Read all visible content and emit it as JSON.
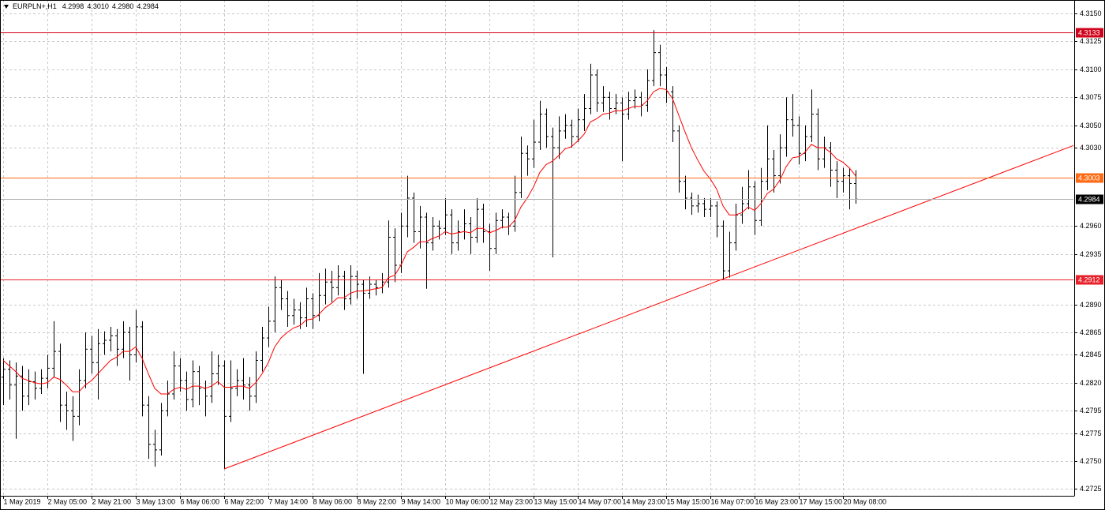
{
  "chart_data": {
    "type": "ohlc",
    "title": "EURPLN+,H1",
    "header_values": [
      "4.2998",
      "4.3010",
      "4.2980",
      "4.2984"
    ],
    "color": "#000000",
    "grid": true,
    "xlim": [
      -0.5,
      169.5
    ],
    "ylim": [
      4.2719,
      4.3162
    ],
    "xticks": [
      {
        "value": 0,
        "label": "1 May 2019"
      },
      {
        "value": 7,
        "label": "2 May 05:00"
      },
      {
        "value": 14,
        "label": "2 May 21:00"
      },
      {
        "value": 21,
        "label": "3 May 13:00"
      },
      {
        "value": 28,
        "label": "6 May 06:00"
      },
      {
        "value": 35,
        "label": "6 May 22:00"
      },
      {
        "value": 42,
        "label": "7 May 14:00"
      },
      {
        "value": 49,
        "label": "8 May 06:00"
      },
      {
        "value": 56,
        "label": "8 May 22:00"
      },
      {
        "value": 63,
        "label": "9 May 14:00"
      },
      {
        "value": 70,
        "label": "10 May 06:00"
      },
      {
        "value": 77,
        "label": "12 May 23:00"
      },
      {
        "value": 84,
        "label": "13 May 15:00"
      },
      {
        "value": 91,
        "label": "14 May 07:00"
      },
      {
        "value": 98,
        "label": "14 May 23:00"
      },
      {
        "value": 105,
        "label": "15 May 15:00"
      },
      {
        "value": 112,
        "label": "16 May 07:00"
      },
      {
        "value": 119,
        "label": "16 May 23:00"
      },
      {
        "value": 126,
        "label": "17 May 15:00"
      },
      {
        "value": 133,
        "label": "20 May 08:00"
      }
    ],
    "yticks": [
      {
        "value": 4.315,
        "label": "4.3150"
      },
      4.3125,
      {
        "value": 4.31,
        "label": "4.3100"
      },
      4.3075,
      {
        "value": 4.305,
        "label": "4.3050"
      },
      {
        "value": 4.303,
        "label": "4.3030"
      },
      {
        "value": 4.296,
        "label": "4.2960"
      },
      4.2935,
      {
        "value": 4.289,
        "label": "4.2890"
      },
      4.2865,
      4.2845,
      {
        "value": 4.282,
        "label": "4.2820"
      },
      4.2795,
      4.2775,
      {
        "value": 4.275,
        "label": "4.2750"
      },
      4.2725
    ],
    "ohlc": {
      "open": [
        4.2825,
        4.2832,
        4.2818,
        4.2826,
        4.2808,
        4.2821,
        4.2815,
        4.2824,
        4.2833,
        4.2848,
        4.28,
        4.2795,
        4.279,
        4.2822,
        4.285,
        4.2838,
        4.2855,
        4.2858,
        4.2862,
        4.285,
        4.2865,
        4.2845,
        4.287,
        4.28,
        4.2765,
        4.276,
        4.2795,
        4.281,
        4.2835,
        4.2822,
        4.2805,
        4.283,
        4.2815,
        4.2808,
        4.2828,
        4.2835,
        4.279,
        4.2815,
        4.2822,
        4.2818,
        4.2808,
        4.284,
        4.286,
        4.2875,
        4.2905,
        4.2895,
        4.288,
        4.2885,
        4.2878,
        4.2895,
        4.288,
        4.2898,
        4.291,
        4.2905,
        4.2915,
        4.2895,
        4.2915,
        4.2908,
        4.29,
        4.2908,
        4.2905,
        4.291,
        4.295,
        4.2925,
        4.296,
        4.2985,
        4.2955,
        4.2968,
        4.2945,
        4.296,
        4.2958,
        4.297,
        4.2945,
        4.2955,
        4.2962,
        4.295,
        4.2975,
        4.2955,
        4.294,
        4.2965,
        4.2968,
        4.296,
        4.299,
        4.3025,
        4.302,
        4.3035,
        4.306,
        4.304,
        4.303,
        4.3045,
        4.305,
        4.304,
        4.3055,
        4.3065,
        4.3095,
        4.307,
        4.3075,
        4.3065,
        4.307,
        4.306,
        4.3072,
        4.3075,
        4.3068,
        4.309,
        4.3115,
        4.3095,
        4.308,
        4.3045,
        4.3,
        4.2985,
        4.2978,
        4.298,
        4.2975,
        4.2978,
        4.296,
        4.292,
        4.2945,
        4.297,
        4.298,
        4.2995,
        4.2965,
        4.3,
        4.302,
        4.3005,
        4.303,
        4.3055,
        4.305,
        4.3025,
        4.304,
        4.306,
        4.302,
        4.303,
        4.301,
        4.3,
        4.3005,
        4.2998
      ],
      "high": [
        4.2842,
        4.284,
        4.2838,
        4.2835,
        4.2832,
        4.283,
        4.2832,
        4.2845,
        4.2875,
        4.2855,
        4.2812,
        4.2808,
        4.2832,
        4.2865,
        4.2862,
        4.2868,
        4.2866,
        4.287,
        4.2868,
        4.2875,
        4.287,
        4.2885,
        4.2875,
        4.2808,
        4.2778,
        4.2802,
        4.2822,
        4.2848,
        4.2842,
        4.283,
        4.284,
        4.2835,
        4.2822,
        4.2848,
        4.2845,
        4.284,
        4.284,
        4.2832,
        4.2842,
        4.2825,
        4.2848,
        4.287,
        4.2888,
        4.2915,
        4.2912,
        4.2902,
        4.2895,
        4.2892,
        4.2905,
        4.29,
        4.2918,
        4.2922,
        4.292,
        4.2925,
        4.292,
        4.2925,
        4.292,
        4.2912,
        4.2915,
        4.2912,
        4.2918,
        4.2965,
        4.2958,
        4.2972,
        4.3005,
        4.299,
        4.2978,
        4.2972,
        4.2968,
        4.2965,
        4.2985,
        4.2975,
        4.2965,
        4.2975,
        4.2968,
        4.2985,
        4.298,
        4.2962,
        4.2972,
        4.2975,
        4.2972,
        4.3005,
        4.304,
        4.3032,
        4.3055,
        4.3072,
        4.3065,
        4.3048,
        4.3058,
        4.306,
        4.3055,
        4.3065,
        4.3078,
        4.3105,
        4.31,
        4.3085,
        4.308,
        4.3078,
        4.3075,
        4.308,
        4.3082,
        4.308,
        4.31,
        4.3135,
        4.3122,
        4.3102,
        4.3085,
        4.305,
        4.3005,
        4.299,
        4.2988,
        4.2985,
        4.2985,
        4.2982,
        4.2965,
        4.2955,
        4.298,
        4.2995,
        4.301,
        4.3,
        4.3012,
        4.305,
        4.3028,
        4.3042,
        4.3075,
        4.3078,
        4.3058,
        4.305,
        4.3082,
        4.3065,
        4.304,
        4.3035,
        4.3018,
        4.3012,
        4.3012,
        4.301
      ],
      "low": [
        4.28,
        4.2805,
        4.277,
        4.2795,
        4.28,
        4.2805,
        4.281,
        4.2815,
        4.2825,
        4.2785,
        4.2778,
        4.2768,
        4.2782,
        4.2815,
        4.2828,
        4.2805,
        4.2845,
        4.2848,
        4.2835,
        4.2842,
        4.2822,
        4.2838,
        4.279,
        4.2752,
        4.2745,
        4.2755,
        4.279,
        4.2805,
        4.2812,
        4.2795,
        4.2798,
        4.28,
        4.279,
        4.2802,
        4.2818,
        4.2743,
        4.2785,
        4.2808,
        4.2805,
        4.2795,
        4.2802,
        4.283,
        4.2852,
        4.2865,
        4.2885,
        4.287,
        4.2872,
        4.2868,
        4.287,
        4.2868,
        4.2875,
        4.289,
        4.2892,
        4.2898,
        4.2885,
        4.289,
        4.2895,
        4.2828,
        4.2895,
        4.2898,
        4.29,
        4.2905,
        4.291,
        4.2918,
        4.295,
        4.2945,
        4.294,
        4.2904,
        4.2938,
        4.2948,
        4.2952,
        4.2935,
        4.2938,
        4.2948,
        4.2935,
        4.2945,
        4.2945,
        4.292,
        4.2935,
        4.2958,
        4.2952,
        4.2955,
        4.2985,
        4.3005,
        4.3012,
        4.3028,
        4.303,
        4.2932,
        4.302,
        4.3038,
        4.303,
        4.3035,
        4.3045,
        4.306,
        4.3062,
        4.3062,
        4.3055,
        4.306,
        4.3018,
        4.3055,
        4.3065,
        4.3058,
        4.3062,
        4.3085,
        4.3085,
        4.307,
        4.3035,
        4.299,
        4.2975,
        4.297,
        4.2972,
        4.2968,
        4.2968,
        4.295,
        4.2912,
        4.2914,
        4.2938,
        4.2962,
        4.2975,
        4.2952,
        4.296,
        4.2992,
        4.299,
        4.2998,
        4.3022,
        4.304,
        4.3015,
        4.3018,
        4.3035,
        4.301,
        4.3012,
        4.2995,
        4.2985,
        4.299,
        4.2975,
        4.298
      ],
      "close": [
        4.2832,
        4.2818,
        4.2826,
        4.2808,
        4.2821,
        4.2815,
        4.2824,
        4.2833,
        4.2848,
        4.28,
        4.2795,
        4.279,
        4.2822,
        4.285,
        4.2838,
        4.2855,
        4.2858,
        4.2862,
        4.285,
        4.2865,
        4.2845,
        4.287,
        4.28,
        4.2765,
        4.276,
        4.2795,
        4.281,
        4.2835,
        4.2822,
        4.2805,
        4.283,
        4.2815,
        4.2808,
        4.2828,
        4.2835,
        4.279,
        4.2815,
        4.2822,
        4.2818,
        4.2808,
        4.284,
        4.286,
        4.2875,
        4.2905,
        4.2895,
        4.288,
        4.2885,
        4.2878,
        4.2895,
        4.288,
        4.2898,
        4.291,
        4.2905,
        4.2915,
        4.2895,
        4.2915,
        4.2908,
        4.29,
        4.2908,
        4.2905,
        4.291,
        4.295,
        4.2925,
        4.296,
        4.2985,
        4.2955,
        4.2968,
        4.2945,
        4.296,
        4.2958,
        4.297,
        4.2945,
        4.2955,
        4.2962,
        4.295,
        4.2975,
        4.2955,
        4.294,
        4.2965,
        4.2968,
        4.296,
        4.299,
        4.3025,
        4.302,
        4.3035,
        4.306,
        4.304,
        4.303,
        4.3045,
        4.305,
        4.304,
        4.3055,
        4.3065,
        4.3095,
        4.307,
        4.3075,
        4.3065,
        4.307,
        4.306,
        4.3072,
        4.3075,
        4.3068,
        4.309,
        4.3115,
        4.3095,
        4.308,
        4.3045,
        4.3,
        4.2985,
        4.2978,
        4.298,
        4.2975,
        4.2978,
        4.296,
        4.292,
        4.2945,
        4.297,
        4.298,
        4.2995,
        4.2965,
        4.3,
        4.302,
        4.3005,
        4.303,
        4.3055,
        4.305,
        4.3025,
        4.304,
        4.306,
        4.302,
        4.303,
        4.301,
        4.3,
        4.3005,
        4.2998,
        4.2984
      ]
    },
    "ma": {
      "color": "#ff0000",
      "values": [
        4.284,
        4.2835,
        4.283,
        4.2824,
        4.2822,
        4.282,
        4.2819,
        4.282,
        4.2825,
        4.2823,
        4.2818,
        4.2812,
        4.2812,
        4.2818,
        4.2822,
        4.2828,
        4.2834,
        4.284,
        4.2843,
        4.2848,
        4.2848,
        4.2852,
        4.2842,
        4.2828,
        4.2815,
        4.281,
        4.281,
        4.2814,
        4.2816,
        4.2814,
        4.2817,
        4.2817,
        4.2815,
        4.2817,
        4.2821,
        4.2816,
        4.2816,
        4.2817,
        4.2817,
        4.2815,
        4.282,
        4.2828,
        4.2838,
        4.2852,
        4.286,
        4.2865,
        4.2869,
        4.2871,
        4.2876,
        4.2877,
        4.2881,
        4.2887,
        4.2891,
        4.2896,
        4.2896,
        4.29,
        4.2902,
        4.2902,
        4.2903,
        4.2904,
        4.2905,
        4.2914,
        4.2916,
        4.2925,
        4.2937,
        4.2941,
        4.2946,
        4.2946,
        4.2949,
        4.2951,
        4.2955,
        4.2953,
        4.2954,
        4.2955,
        4.2954,
        4.2958,
        4.2958,
        4.2954,
        4.2956,
        4.2959,
        4.2959,
        4.2965,
        4.2977,
        4.2985,
        4.2995,
        4.3008,
        4.3015,
        4.3018,
        4.3023,
        4.3029,
        4.3031,
        4.3036,
        4.3042,
        4.3053,
        4.3056,
        4.306,
        4.3061,
        4.3063,
        4.3063,
        4.3065,
        4.3067,
        4.3067,
        4.3072,
        4.308,
        4.3083,
        4.3082,
        4.3074,
        4.3059,
        4.3044,
        4.303,
        4.3019,
        4.3009,
        4.3002,
        4.2993,
        4.2978,
        4.297,
        4.297,
        4.2972,
        4.2977,
        4.2974,
        4.298,
        4.2989,
        4.2993,
        4.3001,
        4.3013,
        4.3021,
        4.3022,
        4.3026,
        4.3033,
        4.303,
        4.303,
        4.3026,
        4.302,
        4.3017,
        4.3012,
        4.3005
      ]
    },
    "hlines": [
      {
        "value": 4.3133,
        "label": "4.3133",
        "color": "#d0021b"
      },
      {
        "value": 4.3003,
        "label": "4.3003",
        "color": "#ff6a13"
      },
      {
        "value": 4.2912,
        "label": "4.2912",
        "color": "#e8202a"
      },
      {
        "value": 4.2984,
        "label": "4.2984",
        "color": "#000000"
      }
    ],
    "trendline": {
      "x": [
        35,
        169.5
      ],
      "y": [
        4.2743,
        4.3032
      ],
      "color": "#ff0000"
    }
  }
}
